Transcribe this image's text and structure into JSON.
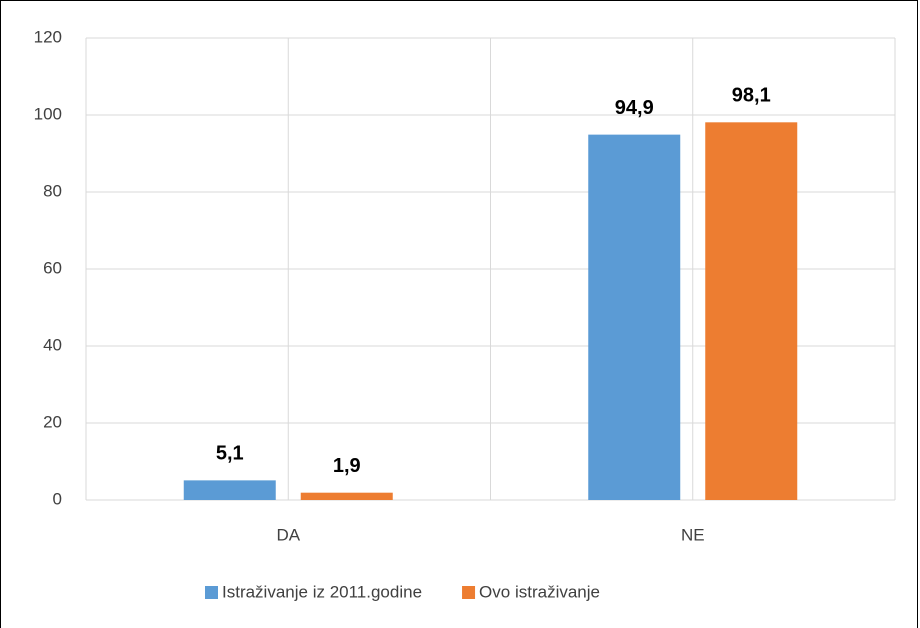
{
  "chart_data": {
    "type": "bar",
    "categories": [
      "DA",
      "NE"
    ],
    "series": [
      {
        "name": "Istraživanje iz 2011.godine",
        "color": "#5b9bd5",
        "values": [
          5.1,
          94.9
        ],
        "value_labels": [
          "5,1",
          "94,9"
        ]
      },
      {
        "name": "Ovo istraživanje",
        "color": "#ed7d31",
        "values": [
          1.9,
          98.1
        ],
        "value_labels": [
          "1,9",
          "98,1"
        ]
      }
    ],
    "ylim": [
      0,
      120
    ],
    "yticks": [
      0,
      20,
      40,
      60,
      80,
      100,
      120
    ],
    "grid": true,
    "legend": "bottom"
  }
}
